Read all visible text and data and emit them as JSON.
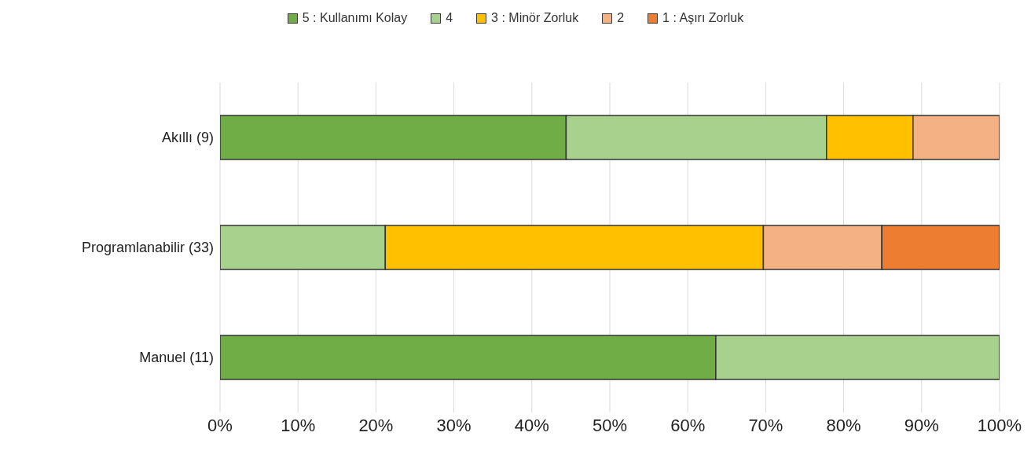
{
  "chart_data": {
    "type": "bar",
    "orientation": "horizontal",
    "stacked": true,
    "categories": [
      "Akıllı (9)",
      "Programlanabilir (33)",
      "Manuel (11)"
    ],
    "series": [
      {
        "name": "5 : Kullanımı Kolay",
        "color": "#70ad47",
        "values": [
          44.4,
          0,
          63.6
        ]
      },
      {
        "name": "4",
        "color": "#a9d18e",
        "values": [
          33.4,
          21.2,
          36.4
        ]
      },
      {
        "name": "3 : Minör Zorluk",
        "color": "#ffc000",
        "values": [
          11.1,
          48.5,
          0
        ]
      },
      {
        "name": "2",
        "color": "#f4b183",
        "values": [
          11.1,
          15.2,
          0
        ]
      },
      {
        "name": "1 : Aşırı Zorluk",
        "color": "#ed7d31",
        "values": [
          0,
          15.1,
          0
        ]
      }
    ],
    "xlim": [
      0,
      100
    ],
    "xticks": [
      {
        "value": 0,
        "label": "0%"
      },
      {
        "value": 10,
        "label": "10%"
      },
      {
        "value": 20,
        "label": "20%"
      },
      {
        "value": 30,
        "label": "30%"
      },
      {
        "value": 40,
        "label": "40%"
      },
      {
        "value": 50,
        "label": "50%"
      },
      {
        "value": 60,
        "label": "60%"
      },
      {
        "value": 70,
        "label": "70%"
      },
      {
        "value": 80,
        "label": "80%"
      },
      {
        "value": 90,
        "label": "90%"
      },
      {
        "value": 100,
        "label": "100%"
      }
    ],
    "grid": "x",
    "legend": "top"
  }
}
